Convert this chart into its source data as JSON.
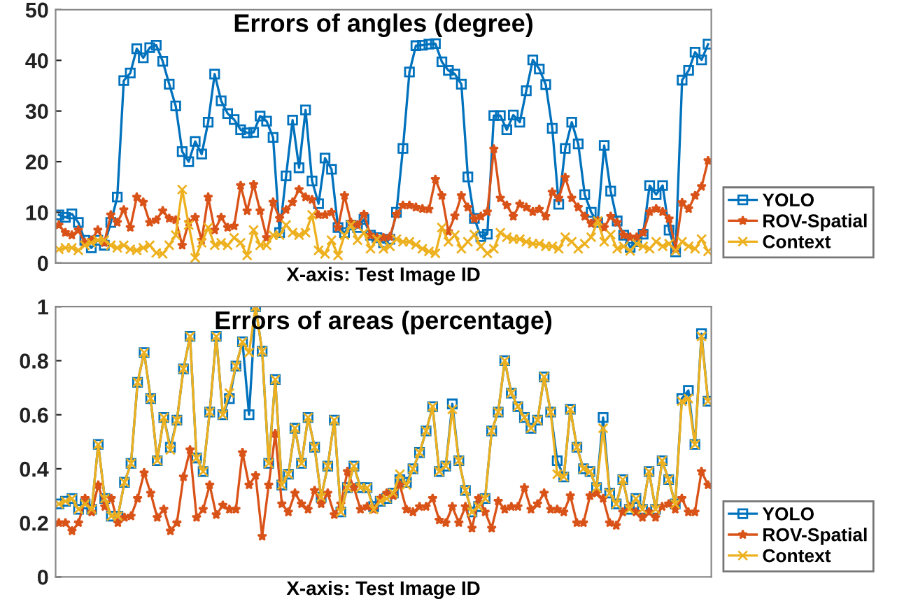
{
  "chart_data": [
    {
      "type": "line",
      "title": "Errors of angles (degree)",
      "xlabel": "X-axis: Test Image ID",
      "categories": [
        null,
        null,
        null,
        null,
        null,
        null,
        null,
        null,
        null,
        null,
        null,
        null,
        null,
        null,
        null,
        null,
        null,
        null,
        null,
        null,
        null,
        null,
        null,
        null,
        null,
        null,
        null,
        null,
        null,
        null,
        null,
        null,
        null,
        null,
        null,
        null,
        null,
        null,
        null,
        null,
        null,
        null,
        null,
        null,
        null,
        null,
        null,
        null,
        null,
        null,
        null,
        null,
        null,
        null,
        null,
        null,
        null,
        null,
        null,
        null,
        null,
        null,
        null,
        null,
        null,
        null,
        null,
        null,
        null,
        null,
        null,
        null,
        null,
        null,
        null,
        null,
        null,
        null,
        null,
        null,
        null,
        null,
        null,
        null,
        null,
        null,
        null,
        null,
        null,
        null,
        null,
        null,
        null,
        null,
        null,
        null,
        null,
        null,
        null,
        null,
        null
      ],
      "ylim": [
        0,
        50
      ],
      "yticks": [
        0,
        10,
        20,
        30,
        40,
        50
      ],
      "grid": false,
      "legend": "right",
      "line_style": "solid",
      "series": [
        {
          "name": "YOLO",
          "color": "#0072bd",
          "marker": "square",
          "values": [
            9.5,
            9,
            9.7,
            8,
            4.5,
            3,
            4.5,
            3.5,
            8,
            13,
            36,
            37.5,
            42.3,
            40.5,
            42.5,
            43,
            39.8,
            35.3,
            31,
            22,
            20,
            24,
            21.5,
            27.8,
            37.3,
            32,
            29.5,
            28.3,
            26.3,
            25.7,
            25.8,
            29,
            28,
            24.8,
            6,
            17.2,
            28.2,
            18.8,
            30.2,
            16.2,
            11.7,
            20.7,
            18.5,
            7,
            6,
            7.5,
            7,
            8.6,
            5.5,
            5,
            4,
            4.7,
            10,
            22.6,
            37.7,
            42.9,
            43,
            43.2,
            43.3,
            39.7,
            38,
            37.3,
            35.3,
            17,
            8.8,
            5.2,
            5.7,
            29.1,
            29.1,
            26.3,
            29.2,
            27.8,
            34,
            40.1,
            38.3,
            35.2,
            26.6,
            11.6,
            22.6,
            27.8,
            23.5,
            13.5,
            10,
            8,
            23.2,
            14.2,
            8.3,
            5.5,
            3.1,
            4.2,
            5.7,
            15.3,
            13.5,
            15.3,
            6.5,
            2.2,
            36.1,
            38,
            41.6,
            40.1,
            43.2
          ]
        },
        {
          "name": "ROV-Spatial",
          "color": "#d95319",
          "marker": "star",
          "values": [
            7.5,
            6,
            5.5,
            6.5,
            4,
            4.5,
            6.5,
            4,
            9.5,
            8,
            10.5,
            7,
            13,
            12,
            8,
            8.5,
            10.3,
            8.8,
            8.5,
            3.5,
            8,
            9,
            4.5,
            13,
            6.5,
            9,
            7,
            7.3,
            15.3,
            10.3,
            15.5,
            10.3,
            5,
            12,
            8.8,
            10.5,
            12,
            14.5,
            13,
            12.5,
            9.5,
            9.5,
            10,
            7,
            13.3,
            8,
            7.5,
            9.6,
            5.5,
            5,
            5,
            5.2,
            9.6,
            11.4,
            11.4,
            11,
            10.7,
            10.6,
            16.5,
            13.3,
            6.2,
            9.3,
            13.3,
            11,
            8.7,
            9.2,
            10.1,
            22.5,
            12.8,
            11.4,
            9.2,
            11.6,
            11,
            10.1,
            10.6,
            9.2,
            14,
            12.8,
            16.9,
            12.8,
            11,
            9.2,
            7.8,
            8.3,
            7,
            9.2,
            8,
            5.5,
            5.1,
            5.1,
            6,
            10.1,
            10.7,
            10.1,
            8.7,
            2.9,
            11.9,
            10.7,
            13.3,
            15.1,
            20.2
          ]
        },
        {
          "name": "Context",
          "color": "#edb120",
          "marker": "cross",
          "values": [
            2.7,
            3,
            3,
            2.5,
            3.5,
            4,
            4.5,
            4.5,
            3.5,
            3,
            3.5,
            2.7,
            2.5,
            3,
            3.5,
            2,
            1.8,
            3.5,
            5.5,
            14.5,
            7.5,
            1,
            4,
            7,
            3.5,
            4,
            3.5,
            5,
            4,
            1.5,
            6.5,
            3.5,
            3.5,
            5.5,
            5.5,
            7.5,
            6,
            5.5,
            6,
            9.5,
            2.5,
            1.8,
            4.5,
            1.5,
            5.5,
            7.5,
            4.5,
            6,
            2.8,
            4.7,
            2.8,
            3.3,
            4.7,
            4.2,
            4.2,
            3.6,
            2.8,
            2.3,
            1.9,
            7,
            4.2,
            5.5,
            2.8,
            4.2,
            5.6,
            3.3,
            1.9,
            2.8,
            6,
            5.1,
            4.7,
            4.7,
            4.2,
            3.8,
            3.8,
            3.3,
            3.3,
            2.8,
            5.1,
            4.2,
            2.8,
            3.8,
            5.1,
            8.3,
            4.2,
            5.6,
            2.8,
            3.3,
            2.4,
            3.8,
            3.3,
            2.8,
            4.2,
            3.3,
            3.8,
            2.4,
            4.2,
            3.3,
            2.8,
            4.7,
            2.3
          ]
        }
      ]
    },
    {
      "type": "line",
      "title": "Errors of areas (percentage)",
      "xlabel": "X-axis: Test Image ID",
      "categories": [
        null,
        null,
        null,
        null,
        null,
        null,
        null,
        null,
        null,
        null,
        null,
        null,
        null,
        null,
        null,
        null,
        null,
        null,
        null,
        null,
        null,
        null,
        null,
        null,
        null,
        null,
        null,
        null,
        null,
        null,
        null,
        null,
        null,
        null,
        null,
        null,
        null,
        null,
        null,
        null,
        null,
        null,
        null,
        null,
        null,
        null,
        null,
        null,
        null,
        null,
        null,
        null,
        null,
        null,
        null,
        null,
        null,
        null,
        null,
        null,
        null,
        null,
        null,
        null,
        null,
        null,
        null,
        null,
        null,
        null,
        null,
        null,
        null,
        null,
        null,
        null,
        null,
        null,
        null,
        null,
        null,
        null,
        null,
        null,
        null,
        null,
        null,
        null,
        null,
        null,
        null,
        null,
        null,
        null,
        null,
        null,
        null,
        null,
        null,
        null
      ],
      "ylim": [
        0,
        1
      ],
      "yticks": [
        0,
        0.2,
        0.4,
        0.6,
        0.8,
        1
      ],
      "grid": false,
      "legend": "right",
      "line_style": "solid",
      "series": [
        {
          "name": "YOLO",
          "color": "#0072bd",
          "marker": "square",
          "values": [
            0.27,
            0.28,
            0.29,
            0.25,
            0.27,
            0.25,
            0.49,
            0.29,
            0.225,
            0.225,
            0.35,
            0.42,
            0.72,
            0.83,
            0.66,
            0.43,
            0.59,
            0.48,
            0.58,
            0.77,
            0.89,
            0.44,
            0.39,
            0.61,
            0.89,
            0.6,
            0.66,
            0.78,
            0.87,
            0.6,
            1.0,
            0.835,
            0.42,
            0.73,
            0.34,
            0.38,
            0.55,
            0.42,
            0.59,
            0.48,
            0.295,
            0.41,
            0.58,
            0.24,
            0.33,
            0.41,
            0.33,
            0.33,
            0.26,
            0.28,
            0.29,
            0.31,
            0.36,
            0.35,
            0.4,
            0.46,
            0.54,
            0.63,
            0.39,
            0.41,
            0.64,
            0.43,
            0.32,
            0.24,
            0.26,
            0.29,
            0.54,
            0.61,
            0.8,
            0.68,
            0.63,
            0.59,
            0.55,
            0.58,
            0.74,
            0.61,
            0.43,
            0.37,
            0.62,
            0.48,
            0.4,
            0.39,
            0.33,
            0.59,
            0.31,
            0.27,
            0.36,
            0.25,
            0.29,
            0.25,
            0.39,
            0.25,
            0.43,
            0.36,
            0.27,
            0.66,
            0.69,
            0.49,
            0.9,
            0.65
          ]
        },
        {
          "name": "ROV-Spatial",
          "color": "#d95319",
          "marker": "star",
          "values": [
            0.2,
            0.2,
            0.17,
            0.2,
            0.29,
            0.24,
            0.34,
            0.26,
            0.29,
            0.2,
            0.22,
            0.225,
            0.29,
            0.385,
            0.31,
            0.22,
            0.25,
            0.17,
            0.2,
            0.37,
            0.47,
            0.22,
            0.25,
            0.34,
            0.23,
            0.265,
            0.25,
            0.25,
            0.46,
            0.34,
            0.375,
            0.15,
            0.34,
            0.53,
            0.27,
            0.24,
            0.31,
            0.27,
            0.25,
            0.32,
            0.27,
            0.31,
            0.23,
            0.27,
            0.39,
            0.33,
            0.25,
            0.26,
            0.25,
            0.29,
            0.31,
            0.3,
            0.34,
            0.25,
            0.24,
            0.26,
            0.26,
            0.29,
            0.21,
            0.2,
            0.26,
            0.2,
            0.26,
            0.18,
            0.29,
            0.24,
            0.18,
            0.28,
            0.25,
            0.26,
            0.26,
            0.33,
            0.25,
            0.27,
            0.31,
            0.25,
            0.25,
            0.24,
            0.3,
            0.2,
            0.2,
            0.3,
            0.31,
            0.29,
            0.2,
            0.19,
            0.24,
            0.26,
            0.24,
            0.22,
            0.24,
            0.22,
            0.26,
            0.27,
            0.25,
            0.29,
            0.24,
            0.24,
            0.39,
            0.34
          ]
        },
        {
          "name": "Context",
          "color": "#edb120",
          "marker": "cross",
          "values": [
            0.27,
            0.28,
            0.29,
            0.25,
            0.27,
            0.25,
            0.49,
            0.29,
            0.225,
            0.225,
            0.35,
            0.42,
            0.72,
            0.83,
            0.66,
            0.43,
            0.59,
            0.47,
            0.58,
            0.77,
            0.89,
            0.44,
            0.39,
            0.61,
            0.89,
            0.6,
            0.68,
            0.78,
            0.87,
            0.83,
            1.0,
            0.835,
            0.42,
            0.73,
            0.34,
            0.38,
            0.55,
            0.42,
            0.59,
            0.48,
            0.295,
            0.41,
            0.58,
            0.24,
            0.33,
            0.41,
            0.33,
            0.33,
            0.25,
            0.28,
            0.29,
            0.31,
            0.38,
            0.34,
            0.4,
            0.46,
            0.54,
            0.63,
            0.39,
            0.41,
            0.62,
            0.43,
            0.32,
            0.24,
            0.26,
            0.29,
            0.54,
            0.61,
            0.8,
            0.68,
            0.63,
            0.59,
            0.55,
            0.58,
            0.74,
            0.61,
            0.38,
            0.37,
            0.62,
            0.48,
            0.4,
            0.39,
            0.33,
            0.55,
            0.31,
            0.27,
            0.36,
            0.25,
            0.29,
            0.25,
            0.39,
            0.25,
            0.43,
            0.36,
            0.27,
            0.65,
            0.66,
            0.49,
            0.89,
            0.65
          ]
        }
      ]
    }
  ]
}
